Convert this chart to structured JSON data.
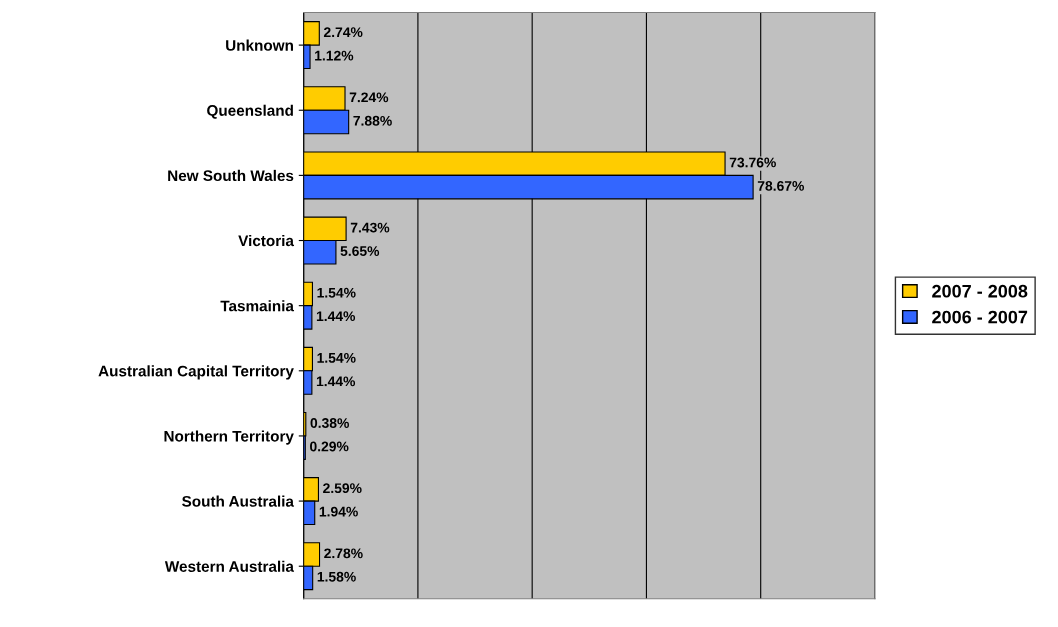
{
  "chart_data": {
    "type": "bar",
    "orientation": "horizontal",
    "categories": [
      "Unknown",
      "Queensland",
      "New South Wales",
      "Victoria",
      "Tasmainia",
      "Australian Capital Territory",
      "Northern Territory",
      "South Australia",
      "Western Australia"
    ],
    "series": [
      {
        "name": "2007 - 2008",
        "color": "#ffcc00",
        "values": [
          2.74,
          7.24,
          73.76,
          7.43,
          1.54,
          1.54,
          0.38,
          2.59,
          2.78
        ],
        "value_labels": [
          "2.74%",
          "7.24%",
          "73.76%",
          "7.43%",
          "1.54%",
          "1.54%",
          "0.38%",
          "2.59%",
          "2.78%"
        ]
      },
      {
        "name": "2006 - 2007",
        "color": "#3366ff",
        "values": [
          1.12,
          7.88,
          78.67,
          5.65,
          1.44,
          1.44,
          0.29,
          1.94,
          1.58
        ],
        "value_labels": [
          "1.12%",
          "7.88%",
          "78.67%",
          "5.65%",
          "1.44%",
          "1.44%",
          "0.29%",
          "1.94%",
          "1.58%"
        ]
      }
    ],
    "xlim": [
      0,
      100
    ],
    "xticks": [
      {
        "value": 0,
        "label": null
      },
      {
        "value": 20,
        "label": null
      },
      {
        "value": 40,
        "label": null
      },
      {
        "value": 60,
        "label": null
      },
      {
        "value": 80,
        "label": null
      },
      {
        "value": 100,
        "label": null
      }
    ],
    "grid": "x",
    "legend": "right",
    "tick_labels": "y"
  }
}
